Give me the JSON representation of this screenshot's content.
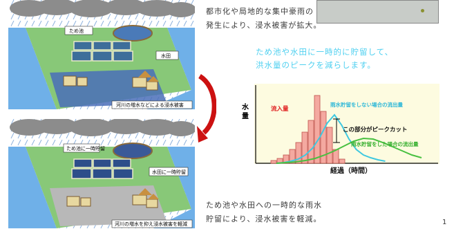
{
  "top": {
    "line1": "都市化や局地的な集中豪雨の",
    "line2": "発生により、浸水被害が拡大。"
  },
  "message": {
    "line1": "ため池や水田に一時的に貯留して、",
    "line2": "洪水量のピークを減らします。"
  },
  "bottom": {
    "line1": "ため池や水田への一時的な雨水",
    "line2": "貯留により、浸水被害を軽減。"
  },
  "illustration_top": {
    "label_pond": "ため池",
    "label_field": "水田",
    "caption": "河川の増水などによる浸水被害"
  },
  "illustration_bottom": {
    "label_pond": "ため池に一時貯留",
    "label_field": "水田に一時貯留",
    "caption": "河川の増水を抑え浸水被害を軽減"
  },
  "chart_labels": {
    "ylabel": "水量",
    "xlabel": "経過（時間）",
    "inflow": "流入量",
    "no_storage": "雨水貯留をしない場合の流出量",
    "peak_cut": "この部分がピークカット",
    "with_storage": "雨水貯留をした場合の流出量"
  },
  "page_number": "1",
  "colors": {
    "cyan_text": "#4fd0f0",
    "bar_fill": "#f4a9a0",
    "bar_stroke": "#c0504d",
    "chart_bg": "#fdfbe0",
    "no_storage_line": "#3fc8e0",
    "with_storage_line": "#48c040",
    "arrow": "#cc1111"
  },
  "chart_data": {
    "type": "bar",
    "title": "",
    "xlabel": "経過（時間）",
    "ylabel": "水量",
    "grid": false,
    "values": [
      0.04,
      0.07,
      0.12,
      0.2,
      0.3,
      0.45,
      0.62,
      0.98,
      0.75,
      0.52,
      0.2,
      0.06
    ],
    "series": [
      {
        "name": "流入量",
        "values": [
          0.04,
          0.07,
          0.12,
          0.2,
          0.3,
          0.45,
          0.62,
          0.98,
          0.75,
          0.52,
          0.2,
          0.06
        ]
      },
      {
        "name": "雨水貯留をしない場合の流出量",
        "values": [
          0,
          0.01,
          0.03,
          0.06,
          0.12,
          0.22,
          0.38,
          0.58,
          0.7,
          0.55,
          0.35,
          0.2,
          0.12,
          0.08,
          0.05,
          0.03
        ]
      },
      {
        "name": "雨水貯留をした場合の流出量",
        "values": [
          0,
          0.01,
          0.02,
          0.04,
          0.07,
          0.12,
          0.18,
          0.25,
          0.32,
          0.36,
          0.35,
          0.3,
          0.24,
          0.18,
          0.12,
          0.08
        ]
      }
    ],
    "annotations": [
      "この部分がピークカット"
    ]
  }
}
